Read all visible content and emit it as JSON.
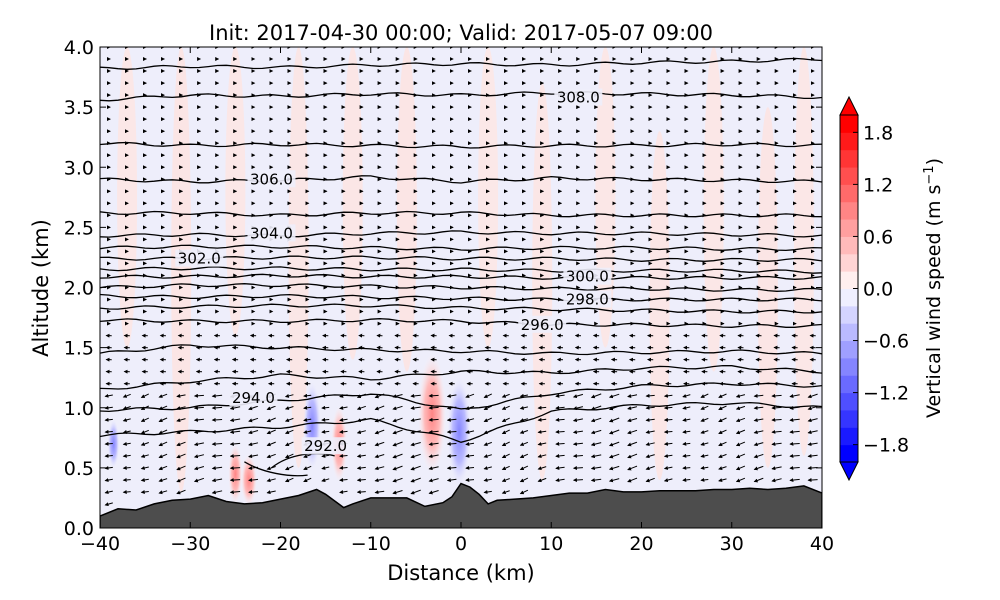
{
  "chart_data": {
    "type": "contour",
    "title": "Init: 2017-04-30 00:00; Valid: 2017-05-07 09:00",
    "xlabel": "Distance (km)",
    "ylabel": "Altitude (km)",
    "xlim": [
      -40,
      40
    ],
    "ylim": [
      0.0,
      4.0
    ],
    "x_ticks": [
      -40,
      -30,
      -20,
      -10,
      0,
      10,
      20,
      30,
      40
    ],
    "x_tick_labels": [
      "−40",
      "−30",
      "−20",
      "−10",
      "0",
      "10",
      "20",
      "30",
      "40"
    ],
    "y_ticks": [
      0.0,
      0.5,
      1.0,
      1.5,
      2.0,
      2.5,
      3.0,
      3.5,
      4.0
    ],
    "y_tick_labels": [
      "0.0",
      "0.5",
      "1.0",
      "1.5",
      "2.0",
      "2.5",
      "3.0",
      "3.5",
      "4.0"
    ],
    "colorbar": {
      "label": "Vertical wind speed (m s",
      "label_superscript": "−1",
      "label_suffix": ")",
      "range": [
        -2.0,
        2.0
      ],
      "ticks": [
        1.8,
        1.2,
        0.6,
        0.0,
        -0.6,
        -1.2,
        -1.8
      ],
      "tick_labels": [
        "1.8",
        "1.2",
        "0.6",
        "0.0",
        "−0.6",
        "−1.2",
        "−1.8"
      ],
      "colors": [
        "#0000ff",
        "#1a1aff",
        "#3535ff",
        "#4f4fff",
        "#6a6aff",
        "#8585ff",
        "#9f9fff",
        "#babaff",
        "#d4d4ff",
        "#efefff",
        "#ffefef",
        "#ffd4d4",
        "#ffbaba",
        "#ff9f9f",
        "#ff8585",
        "#ff6a6a",
        "#ff4f4f",
        "#ff3535",
        "#ff1a1a",
        "#ff0000"
      ]
    },
    "terrain": {
      "x": [
        -40,
        -38,
        -36,
        -34,
        -32,
        -30,
        -28,
        -26,
        -24,
        -22,
        -20,
        -18,
        -16,
        -15,
        -13,
        -12,
        -10,
        -8,
        -6,
        -4,
        -2,
        -1,
        0,
        1,
        2,
        3,
        4,
        6,
        8,
        10,
        12,
        14,
        16,
        18,
        20,
        22,
        24,
        26,
        28,
        30,
        32,
        34,
        36,
        38,
        40
      ],
      "height": [
        0.1,
        0.16,
        0.15,
        0.2,
        0.23,
        0.24,
        0.27,
        0.22,
        0.2,
        0.21,
        0.24,
        0.27,
        0.32,
        0.28,
        0.17,
        0.2,
        0.25,
        0.25,
        0.25,
        0.18,
        0.21,
        0.26,
        0.37,
        0.34,
        0.28,
        0.2,
        0.23,
        0.24,
        0.25,
        0.27,
        0.29,
        0.29,
        0.32,
        0.3,
        0.3,
        0.31,
        0.31,
        0.31,
        0.32,
        0.32,
        0.33,
        0.32,
        0.33,
        0.35,
        0.29
      ]
    },
    "contour_labels": [
      {
        "text": "308.0",
        "x": 13,
        "y": 3.58
      },
      {
        "text": "306.0",
        "x": -21,
        "y": 2.9
      },
      {
        "text": "304.0",
        "x": -21,
        "y": 2.45
      },
      {
        "text": "302.0",
        "x": -29,
        "y": 2.24
      },
      {
        "text": "300.0",
        "x": 14,
        "y": 2.09
      },
      {
        "text": "298.0",
        "x": 14,
        "y": 1.9
      },
      {
        "text": "296.0",
        "x": 9,
        "y": 1.69
      },
      {
        "text": "294.0",
        "x": -23,
        "y": 1.08
      },
      {
        "text": "292.0",
        "x": -15,
        "y": 0.68
      }
    ],
    "contours_main": [
      {
        "level": 309.0,
        "y": [
          3.82,
          3.84,
          3.83,
          3.85,
          3.86,
          3.85,
          3.87,
          3.88,
          3.9
        ]
      },
      {
        "level": 308.0,
        "y": [
          3.56,
          3.6,
          3.59,
          3.61,
          3.6,
          3.62,
          3.61,
          3.6,
          3.58
        ]
      },
      {
        "level": 307.0,
        "y": [
          3.2,
          3.18,
          3.19,
          3.18,
          3.17,
          3.18,
          3.18,
          3.19,
          3.18
        ]
      },
      {
        "level": 306.0,
        "y": [
          2.9,
          2.88,
          2.89,
          2.92,
          2.88,
          2.91,
          2.9,
          2.89,
          2.88
        ]
      },
      {
        "level": 305.0,
        "y": [
          2.62,
          2.62,
          2.6,
          2.62,
          2.62,
          2.6,
          2.6,
          2.6,
          2.6
        ]
      },
      {
        "level": 304.0,
        "y": [
          2.43,
          2.44,
          2.43,
          2.45,
          2.46,
          2.45,
          2.45,
          2.44,
          2.43
        ]
      },
      {
        "level": 303.0,
        "y": [
          2.33,
          2.34,
          2.34,
          2.33,
          2.32,
          2.33,
          2.33,
          2.32,
          2.32
        ]
      },
      {
        "level": 302.0,
        "y": [
          2.24,
          2.24,
          2.25,
          2.25,
          2.24,
          2.24,
          2.23,
          2.23,
          2.23
        ]
      },
      {
        "level": 301.0,
        "y": [
          2.15,
          2.16,
          2.16,
          2.15,
          2.15,
          2.14,
          2.14,
          2.14,
          2.13
        ]
      },
      {
        "level": 300.0,
        "y": [
          2.09,
          2.09,
          2.1,
          2.09,
          2.09,
          2.08,
          2.08,
          2.08,
          2.08
        ]
      },
      {
        "level": 299.0,
        "y": [
          2.0,
          2.02,
          2.02,
          2.01,
          2.0,
          1.99,
          1.99,
          1.98,
          1.98
        ]
      },
      {
        "level": 298.0,
        "y": [
          1.93,
          1.92,
          1.93,
          1.92,
          1.91,
          1.9,
          1.9,
          1.9,
          1.9
        ]
      },
      {
        "level": 297.0,
        "y": [
          1.83,
          1.84,
          1.85,
          1.85,
          1.83,
          1.82,
          1.81,
          1.8,
          1.8
        ]
      },
      {
        "level": 296.0,
        "y": [
          1.73,
          1.72,
          1.72,
          1.73,
          1.72,
          1.69,
          1.69,
          1.68,
          1.68
        ]
      },
      {
        "level": 295.0,
        "y": [
          1.45,
          1.52,
          1.5,
          1.48,
          1.47,
          1.45,
          1.46,
          1.47,
          1.45
        ]
      },
      {
        "level": 294.5,
        "y": [
          1.15,
          1.22,
          1.27,
          1.24,
          1.3,
          1.29,
          1.33,
          1.34,
          1.3
        ]
      },
      {
        "level": 294.0,
        "y": [
          0.98,
          1.0,
          1.06,
          1.12,
          0.98,
          1.12,
          1.18,
          1.2,
          1.18
        ]
      },
      {
        "level": 293.0,
        "y": [
          0.77,
          0.8,
          0.84,
          0.9,
          0.72,
          0.97,
          1.02,
          1.04,
          1.0
        ]
      }
    ]
  }
}
